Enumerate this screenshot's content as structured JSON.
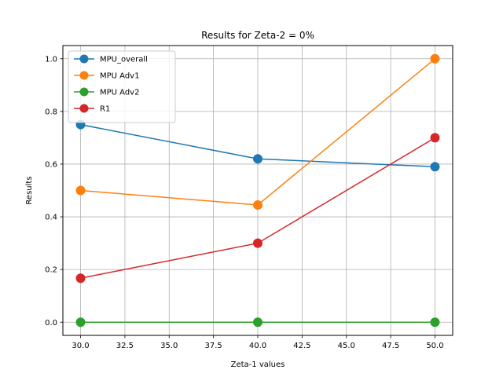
{
  "chart_data": {
    "type": "line",
    "title": "Results for Zeta-2 = 0%",
    "xlabel": "Zeta-1 values",
    "ylabel": "Results",
    "x": [
      30,
      40,
      50
    ],
    "xlim": [
      29,
      51
    ],
    "ylim": [
      -0.05,
      1.05
    ],
    "xticks": [
      "30.0",
      "32.5",
      "35.0",
      "37.5",
      "40.0",
      "42.5",
      "45.0",
      "47.5",
      "50.0"
    ],
    "yticks": [
      "0.0",
      "0.2",
      "0.4",
      "0.6",
      "0.8",
      "1.0"
    ],
    "grid": true,
    "legend_position": "top-left",
    "series": [
      {
        "name": "MPU_overall",
        "color": "#1f77b4",
        "values": [
          0.75,
          0.62,
          0.59
        ]
      },
      {
        "name": "MPU Adv1",
        "color": "#ff7f0e",
        "values": [
          0.5,
          0.445,
          1.0
        ]
      },
      {
        "name": "MPU Adv2",
        "color": "#2ca02c",
        "values": [
          0.0,
          0.0,
          0.0
        ]
      },
      {
        "name": "R1",
        "color": "#d62728",
        "values": [
          0.167,
          0.3,
          0.7
        ]
      }
    ]
  }
}
